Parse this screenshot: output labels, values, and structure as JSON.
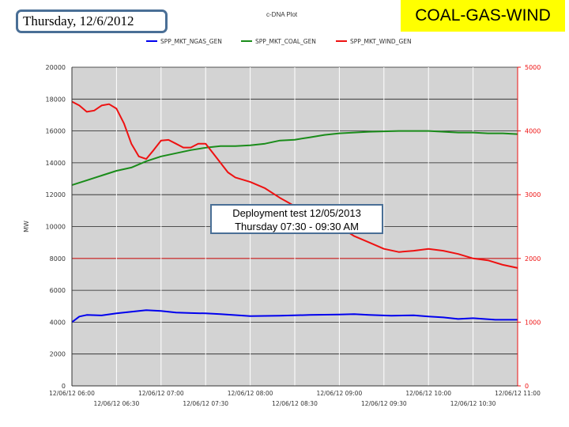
{
  "header": {
    "date_label": "Thursday, 12/6/2012",
    "plot_label": "c-DNA Plot",
    "title": "COAL-GAS-WIND"
  },
  "annotation": {
    "line1": "Deployment test   12/05/2013",
    "line2": "Thursday   07:30  -  09:30 AM"
  },
  "chart_data": {
    "type": "line",
    "ylabel": "MW",
    "y_left_lim": [
      0,
      20000
    ],
    "y_left_ticks": [
      "0",
      "2000",
      "4000",
      "6000",
      "8000",
      "10000",
      "12000",
      "14000",
      "16000",
      "18000",
      "20000"
    ],
    "y_right_lim": [
      0,
      5000
    ],
    "y_right_ticks": [
      "0",
      "1000",
      "2000",
      "3000",
      "4000",
      "5000"
    ],
    "x_start_minutes": 360,
    "x_end_minutes": 660,
    "x_tick_labels_major": [
      "12/06/12 06:00",
      "12/06/12 07:00",
      "12/06/12 08:00",
      "12/06/12 09:00",
      "12/06/12 10:00",
      "12/06/12 11:00"
    ],
    "x_tick_labels_minor": [
      "12/06/12 06:30",
      "12/06/12 07:30",
      "12/06/12 08:30",
      "12/06/12 09:30",
      "12/06/12 10:30"
    ],
    "grid": true,
    "legend_position": "top",
    "plot_background": "#d3d3d3",
    "series": [
      {
        "name": "SPP_MKT_NGAS_GEN",
        "color": "#0000ee",
        "axis": "left",
        "x": [
          360,
          365,
          370,
          380,
          390,
          400,
          405,
          410,
          420,
          430,
          440,
          450,
          460,
          480,
          500,
          520,
          540,
          550,
          560,
          575,
          590,
          600,
          610,
          620,
          630,
          645,
          660
        ],
        "y": [
          4000,
          4350,
          4450,
          4420,
          4550,
          4650,
          4700,
          4750,
          4700,
          4600,
          4570,
          4550,
          4500,
          4380,
          4400,
          4450,
          4480,
          4500,
          4450,
          4400,
          4430,
          4350,
          4300,
          4200,
          4250,
          4150,
          4150
        ]
      },
      {
        "name": "SPP_MKT_COAL_GEN",
        "color": "#1a8c1a",
        "axis": "left",
        "x": [
          360,
          370,
          380,
          390,
          400,
          410,
          420,
          430,
          440,
          450,
          460,
          470,
          480,
          490,
          500,
          510,
          520,
          530,
          540,
          560,
          580,
          600,
          610,
          620,
          630,
          640,
          650,
          660
        ],
        "y": [
          12600,
          12900,
          13200,
          13500,
          13700,
          14100,
          14400,
          14600,
          14800,
          14950,
          15050,
          15050,
          15100,
          15200,
          15400,
          15450,
          15600,
          15750,
          15850,
          15950,
          16000,
          16000,
          15950,
          15900,
          15900,
          15850,
          15850,
          15800
        ]
      },
      {
        "name": "SPP_MKT_WIND_GEN",
        "color": "#ee1111",
        "axis": "right",
        "x": [
          360,
          365,
          370,
          375,
          380,
          385,
          390,
          395,
          400,
          405,
          410,
          415,
          420,
          425,
          430,
          435,
          440,
          445,
          450,
          455,
          460,
          465,
          470,
          480,
          490,
          500,
          510,
          520,
          540,
          550,
          560,
          570,
          580,
          590,
          600,
          610,
          620,
          630,
          640,
          650,
          660
        ],
        "y": [
          4460,
          4400,
          4300,
          4320,
          4400,
          4420,
          4350,
          4120,
          3800,
          3600,
          3560,
          3700,
          3850,
          3860,
          3800,
          3740,
          3740,
          3800,
          3800,
          3650,
          3500,
          3350,
          3270,
          3200,
          3100,
          2950,
          2820,
          2700,
          2500,
          2350,
          2250,
          2150,
          2100,
          2120,
          2150,
          2120,
          2070,
          2000,
          1970,
          1900,
          1850
        ]
      }
    ]
  }
}
